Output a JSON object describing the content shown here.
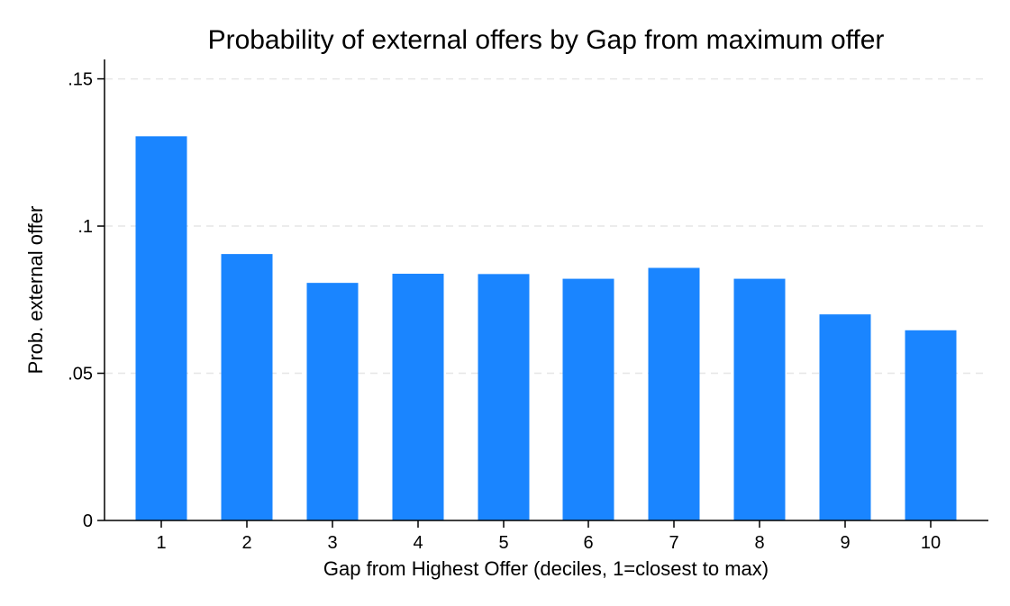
{
  "chart_data": {
    "type": "bar",
    "title": "Probability of external offers by Gap from maximum offer",
    "xlabel": "Gap from Highest Offer (deciles, 1=closest to max)",
    "ylabel": "Prob. external offer",
    "categories": [
      "1",
      "2",
      "3",
      "4",
      "5",
      "6",
      "7",
      "8",
      "9",
      "10"
    ],
    "values": [
      0.1305,
      0.0905,
      0.0807,
      0.0838,
      0.0837,
      0.0821,
      0.0858,
      0.0821,
      0.07,
      0.0646
    ],
    "ylim": [
      0,
      0.1566
    ],
    "yticks": [
      0,
      0.05,
      0.1,
      0.15
    ],
    "ytick_labels": [
      "0",
      ".05",
      ".1",
      ".15"
    ],
    "grid": true,
    "legend": "none",
    "bar_color": "#1a85ff",
    "grid_color": "#e6e6e6",
    "axis_color": "#000000"
  }
}
